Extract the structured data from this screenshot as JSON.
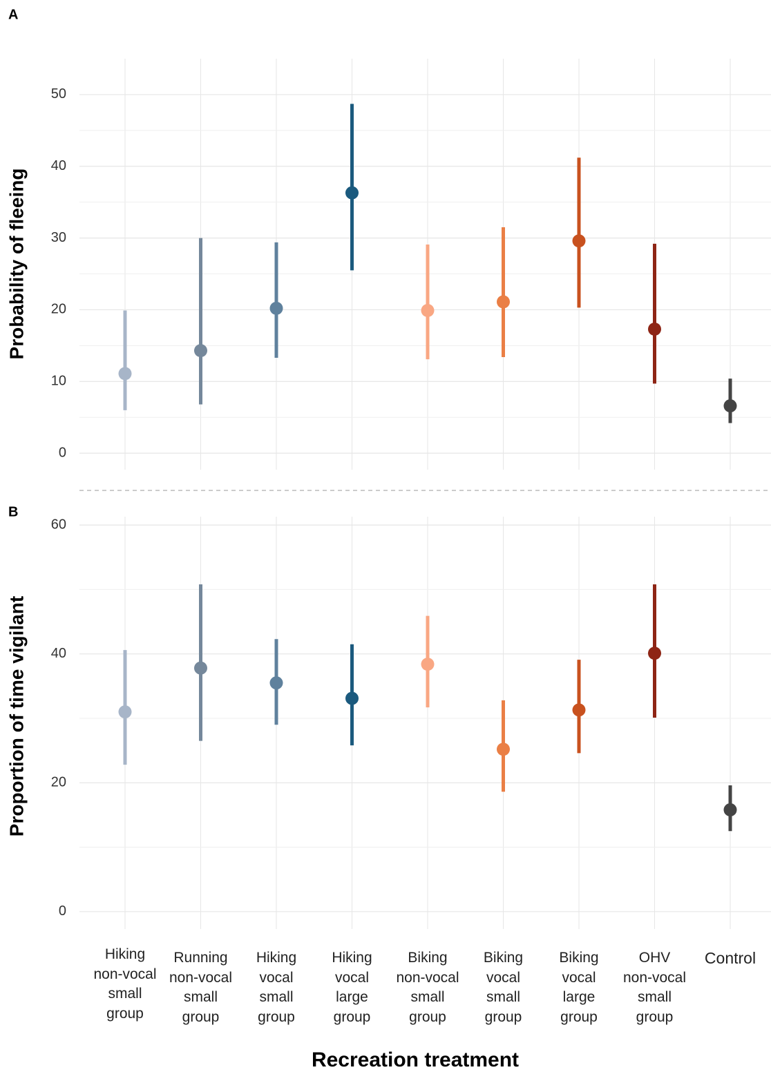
{
  "chart_data": [
    {
      "type": "pointrange",
      "panel_label": "A",
      "y_label": "Probability of fleeing",
      "ylim": [
        -2.3,
        55
      ],
      "yticks": [
        0,
        10,
        20,
        30,
        40,
        50
      ],
      "grid": true,
      "colors": [
        "#a7b5c8",
        "#75889b",
        "#5f819d",
        "#1b5a7e",
        "#f9a783",
        "#ea7f45",
        "#c8511e",
        "#8e2515",
        "#444444"
      ],
      "values": [
        11.1,
        14.3,
        20.2,
        36.3,
        19.9,
        21.1,
        29.6,
        17.3,
        6.6
      ],
      "lower": [
        6.0,
        6.8,
        13.3,
        25.5,
        13.1,
        13.4,
        20.3,
        9.7,
        4.2
      ],
      "upper": [
        19.9,
        30.0,
        29.4,
        48.7,
        29.1,
        31.5,
        41.2,
        29.2,
        10.4
      ]
    },
    {
      "type": "pointrange",
      "panel_label": "B",
      "y_label": "Proportion of time vigilant",
      "x_label": "Recreation treatment",
      "categories": [
        "Hiking\nnon-vocal\nsmall\ngroup",
        "Running\nnon-vocal\nsmall\ngroup",
        "Hiking\nvocal\nsmall\ngroup",
        "Hiking\nvocal\nlarge\ngroup",
        "Biking\nnon-vocal\nsmall\ngroup",
        "Biking\nvocal\nsmall\ngroup",
        "Biking\nvocal\nlarge\ngroup",
        "OHV\nnon-vocal\nsmall\ngroup",
        "Control"
      ],
      "ylim": [
        -2.7,
        61.3
      ],
      "yticks": [
        0,
        20,
        40,
        60
      ],
      "grid": true,
      "colors": [
        "#a7b5c8",
        "#75889b",
        "#5f819d",
        "#1b5a7e",
        "#f9a783",
        "#ea7f45",
        "#c8511e",
        "#8e2515",
        "#444444"
      ],
      "values": [
        31.0,
        37.8,
        35.5,
        33.1,
        38.4,
        25.2,
        31.3,
        40.1,
        15.8
      ],
      "lower": [
        22.8,
        26.5,
        29.0,
        25.8,
        31.7,
        18.6,
        24.6,
        30.1,
        12.5
      ],
      "upper": [
        40.6,
        50.8,
        42.3,
        41.5,
        45.9,
        32.8,
        39.1,
        50.8,
        19.6
      ]
    }
  ]
}
